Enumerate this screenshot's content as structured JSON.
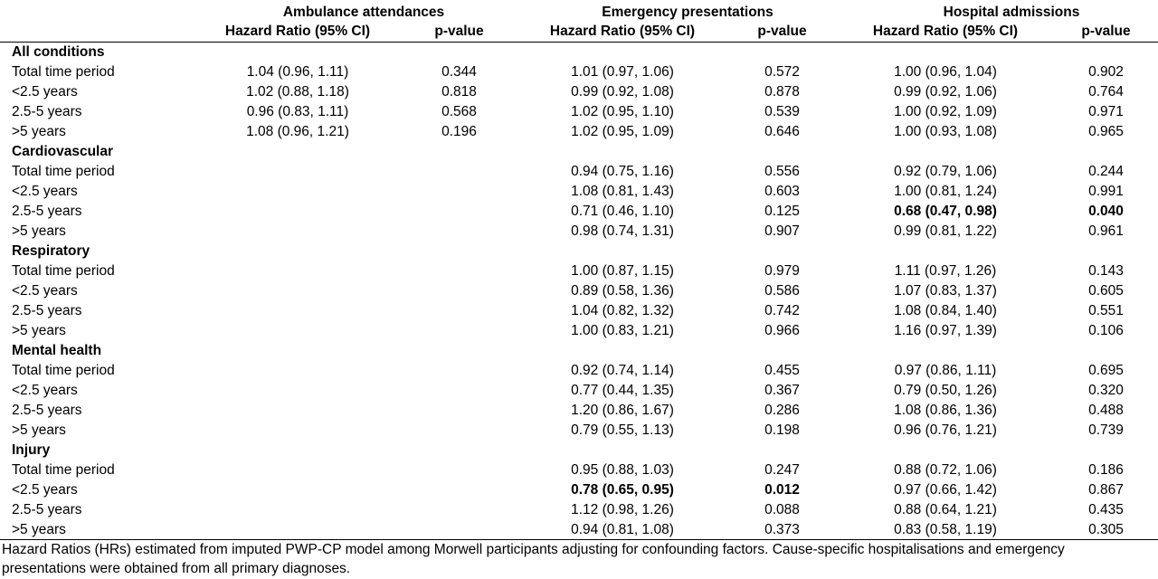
{
  "headers": {
    "groups": [
      "Ambulance attendances",
      "Emergency presentations",
      "Hospital admissions"
    ],
    "hr_label": "Hazard Ratio (95% CI)",
    "p_label": "p-value"
  },
  "sections": [
    {
      "title": "All conditions",
      "rows": [
        {
          "label": "Total time period",
          "am_hr": "1.04 (0.96, 1.11)",
          "am_p": "0.344",
          "em_hr": "1.01 (0.97, 1.06)",
          "em_p": "0.572",
          "ho_hr": "1.00 (0.96, 1.04)",
          "ho_p": "0.902"
        },
        {
          "label": "<2.5 years",
          "am_hr": "1.02 (0.88, 1.18)",
          "am_p": "0.818",
          "em_hr": "0.99 (0.92, 1.08)",
          "em_p": "0.878",
          "ho_hr": "0.99 (0.92, 1.06)",
          "ho_p": "0.764"
        },
        {
          "label": "2.5-5 years",
          "am_hr": "0.96 (0.83, 1.11)",
          "am_p": "0.568",
          "em_hr": "1.02 (0.95, 1.10)",
          "em_p": "0.539",
          "ho_hr": "1.00 (0.92, 1.09)",
          "ho_p": "0.971"
        },
        {
          "label": ">5 years",
          "am_hr": "1.08 (0.96, 1.21)",
          "am_p": "0.196",
          "em_hr": "1.02 (0.95, 1.09)",
          "em_p": "0.646",
          "ho_hr": "1.00 (0.93, 1.08)",
          "ho_p": "0.965"
        }
      ]
    },
    {
      "title": "Cardiovascular",
      "rows": [
        {
          "label": "Total time period",
          "am_hr": "",
          "am_p": "",
          "em_hr": "0.94 (0.75, 1.16)",
          "em_p": "0.556",
          "ho_hr": "0.92 (0.79, 1.06)",
          "ho_p": "0.244"
        },
        {
          "label": "<2.5 years",
          "am_hr": "",
          "am_p": "",
          "em_hr": "1.08 (0.81, 1.43)",
          "em_p": "0.603",
          "ho_hr": "1.00 (0.81, 1.24)",
          "ho_p": "0.991"
        },
        {
          "label": "2.5-5 years",
          "am_hr": "",
          "am_p": "",
          "em_hr": "0.71 (0.46, 1.10)",
          "em_p": "0.125",
          "ho_hr": "0.68 (0.47, 0.98)",
          "ho_p": "0.040",
          "ho_bold": true
        },
        {
          "label": ">5 years",
          "am_hr": "",
          "am_p": "",
          "em_hr": "0.98 (0.74, 1.31)",
          "em_p": "0.907",
          "ho_hr": "0.99 (0.81, 1.22)",
          "ho_p": "0.961"
        }
      ]
    },
    {
      "title": "Respiratory",
      "rows": [
        {
          "label": "Total time period",
          "am_hr": "",
          "am_p": "",
          "em_hr": "1.00 (0.87, 1.15)",
          "em_p": "0.979",
          "ho_hr": "1.11 (0.97, 1.26)",
          "ho_p": "0.143"
        },
        {
          "label": "<2.5 years",
          "am_hr": "",
          "am_p": "",
          "em_hr": "0.89 (0.58, 1.36)",
          "em_p": "0.586",
          "ho_hr": "1.07 (0.83, 1.37)",
          "ho_p": "0.605"
        },
        {
          "label": "2.5-5 years",
          "am_hr": "",
          "am_p": "",
          "em_hr": "1.04 (0.82, 1.32)",
          "em_p": "0.742",
          "ho_hr": "1.08 (0.84, 1.40)",
          "ho_p": "0.551"
        },
        {
          "label": ">5 years",
          "am_hr": "",
          "am_p": "",
          "em_hr": "1.00 (0.83, 1.21)",
          "em_p": "0.966",
          "ho_hr": "1.16 (0.97, 1.39)",
          "ho_p": "0.106"
        }
      ]
    },
    {
      "title": "Mental health",
      "rows": [
        {
          "label": "Total time period",
          "am_hr": "",
          "am_p": "",
          "em_hr": "0.92 (0.74, 1.14)",
          "em_p": "0.455",
          "ho_hr": "0.97 (0.86, 1.11)",
          "ho_p": "0.695"
        },
        {
          "label": "<2.5 years",
          "am_hr": "",
          "am_p": "",
          "em_hr": "0.77 (0.44, 1.35)",
          "em_p": "0.367",
          "ho_hr": "0.79 (0.50, 1.26)",
          "ho_p": "0.320"
        },
        {
          "label": "2.5-5 years",
          "am_hr": "",
          "am_p": "",
          "em_hr": "1.20 (0.86, 1.67)",
          "em_p": "0.286",
          "ho_hr": "1.08 (0.86, 1.36)",
          "ho_p": "0.488"
        },
        {
          "label": ">5 years",
          "am_hr": "",
          "am_p": "",
          "em_hr": "0.79 (0.55, 1.13)",
          "em_p": "0.198",
          "ho_hr": "0.96 (0.76, 1.21)",
          "ho_p": "0.739"
        }
      ]
    },
    {
      "title": "Injury",
      "rows": [
        {
          "label": "Total time period",
          "am_hr": "",
          "am_p": "",
          "em_hr": "0.95 (0.88, 1.03)",
          "em_p": "0.247",
          "ho_hr": "0.88 (0.72, 1.06)",
          "ho_p": "0.186"
        },
        {
          "label": "<2.5 years",
          "am_hr": "",
          "am_p": "",
          "em_hr": "0.78 (0.65, 0.95)",
          "em_p": "0.012",
          "em_bold": true,
          "ho_hr": "0.97 (0.66, 1.42)",
          "ho_p": "0.867"
        },
        {
          "label": "2.5-5 years",
          "am_hr": "",
          "am_p": "",
          "em_hr": "1.12 (0.98, 1.26)",
          "em_p": "0.088",
          "ho_hr": "0.88 (0.64, 1.21)",
          "ho_p": "0.435"
        },
        {
          "label": ">5 years",
          "am_hr": "",
          "am_p": "",
          "em_hr": "0.94 (0.81, 1.08)",
          "em_p": "0.373",
          "ho_hr": "0.83 (0.58, 1.19)",
          "ho_p": "0.305"
        }
      ]
    }
  ],
  "footnote": "Hazard Ratios (HRs) estimated from imputed PWP-CP model among Morwell participants adjusting for confounding factors. Cause-specific hospitalisations and emergency presentations were obtained from all primary diagnoses."
}
